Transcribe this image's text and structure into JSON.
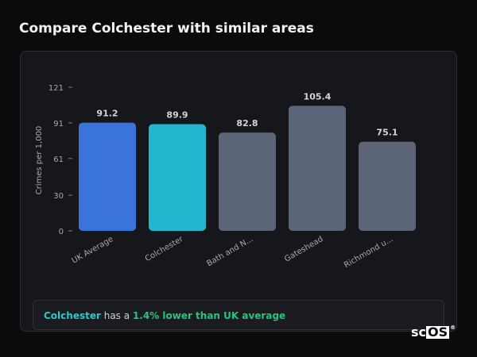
{
  "page": {
    "title": "Compare Colchester with similar areas"
  },
  "chart_data": {
    "type": "bar",
    "categories": [
      "UK Average",
      "Colchester",
      "Bath and N...",
      "Gateshead",
      "Richmond u..."
    ],
    "values": [
      91.2,
      89.9,
      82.8,
      105.4,
      75.1
    ],
    "value_labels": [
      "91.2",
      "89.9",
      "82.8",
      "105.4",
      "75.1"
    ],
    "colors": [
      "#3a73d9",
      "#22b7cf",
      "#5b6577",
      "#5b6577",
      "#5b6577"
    ],
    "yticks": [
      0,
      30,
      61,
      91,
      121
    ],
    "ylim": [
      0,
      121
    ],
    "ylabel": "Crimes per 1,000",
    "xlabel": "",
    "grid": false,
    "legend": "none"
  },
  "summary": {
    "area": "Colchester",
    "middle": " has a ",
    "difference": "1.4% lower than UK average"
  },
  "logo": {
    "text_left": "sc",
    "text_box": "OS",
    "mark": "®"
  }
}
